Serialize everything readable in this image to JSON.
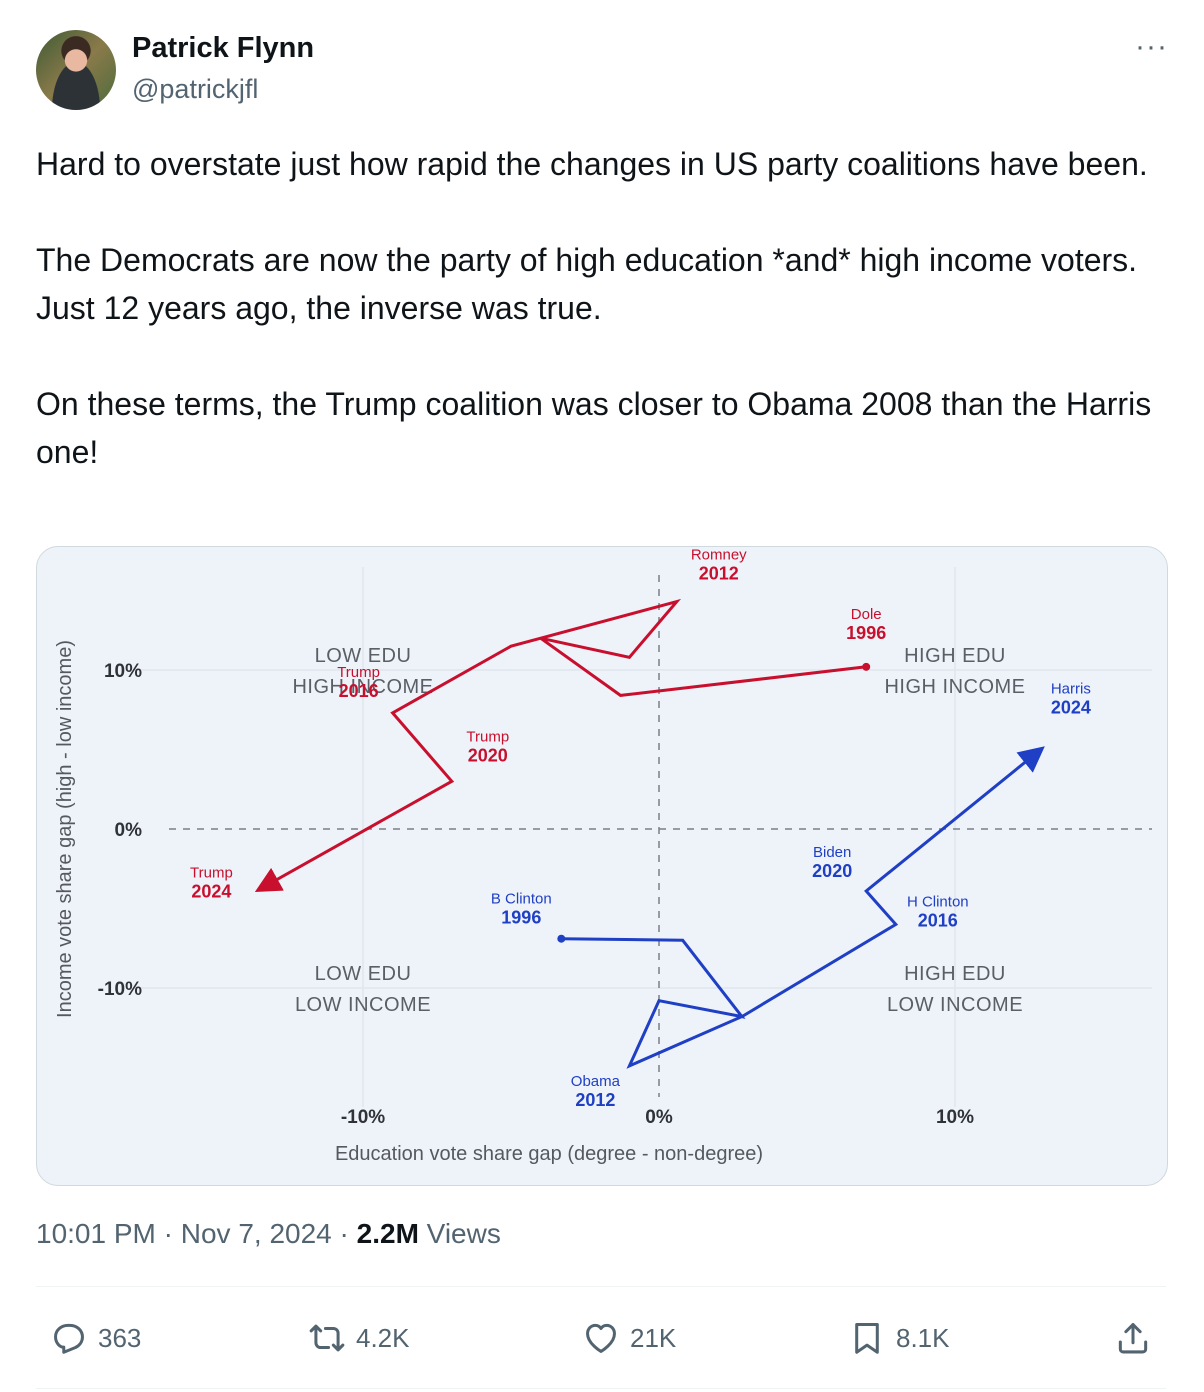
{
  "author": {
    "name": "Patrick Flynn",
    "handle": "@patrickjfl"
  },
  "more_icon": "more-icon",
  "tweet": {
    "paragraphs": [
      "Hard to overstate just how rapid the changes in US party coalitions have been.",
      "The Democrats are now the party of high education *and* high income voters. Just 12 years ago, the inverse was true.",
      "On these terms, the Trump coalition was closer to Obama 2008 than the Harris one!"
    ]
  },
  "chart_data": {
    "type": "line",
    "xlabel": "Education vote share gap (degree - non-degree)",
    "ylabel": "Income vote share gap (high - low income)",
    "xlim": [
      -16,
      17
    ],
    "ylim": [
      -16,
      16
    ],
    "x_ticks": [
      {
        "value": -10,
        "label": "-10%"
      },
      {
        "value": 0,
        "label": "0%"
      },
      {
        "value": 10,
        "label": "10%"
      }
    ],
    "y_ticks": [
      {
        "value": 10,
        "label": "10%"
      },
      {
        "value": 0,
        "label": "0%"
      },
      {
        "value": -10,
        "label": "-10%"
      }
    ],
    "quadrant_labels": [
      {
        "line1": "LOW EDU",
        "line2": "HIGH INCOME",
        "x": -10,
        "y": 10
      },
      {
        "line1": "HIGH EDU",
        "line2": "HIGH INCOME",
        "x": 10,
        "y": 10
      },
      {
        "line1": "LOW EDU",
        "line2": "LOW INCOME",
        "x": -10,
        "y": -10
      },
      {
        "line1": "HIGH EDU",
        "line2": "LOW INCOME",
        "x": 10,
        "y": -10
      }
    ],
    "series": [
      {
        "party": "Republican",
        "color": "#c8102e",
        "points": [
          {
            "x": 7,
            "y": 10.2,
            "name": "Dole",
            "year": "1996",
            "labeled": true
          },
          {
            "x": -1.3,
            "y": 8.4,
            "labeled": false
          },
          {
            "x": -4,
            "y": 12,
            "labeled": false
          },
          {
            "x": -1,
            "y": 10.8,
            "labeled": false
          },
          {
            "x": 0.6,
            "y": 14.3,
            "name": "Romney",
            "year": "2012",
            "labeled": true
          },
          {
            "x": -5,
            "y": 11.5,
            "labeled": false
          },
          {
            "x": -9,
            "y": 7.3,
            "name": "Trump",
            "year": "2016",
            "labeled": true
          },
          {
            "x": -7,
            "y": 3,
            "name": "Trump",
            "year": "2020",
            "labeled": true
          },
          {
            "x": -13.5,
            "y": -3.8,
            "name": "Trump",
            "year": "2024",
            "labeled": true
          }
        ]
      },
      {
        "party": "Democratic",
        "color": "#1f3fc4",
        "points": [
          {
            "x": -3.3,
            "y": -6.9,
            "name": "B Clinton",
            "year": "1996",
            "labeled": true
          },
          {
            "x": 0.8,
            "y": -7,
            "labeled": false
          },
          {
            "x": 2.8,
            "y": -11.8,
            "labeled": false
          },
          {
            "x": 0,
            "y": -10.8,
            "labeled": false
          },
          {
            "x": -1,
            "y": -14.9,
            "name": "Obama",
            "year": "2012",
            "labeled": true
          },
          {
            "x": 2.8,
            "y": -11.8,
            "labeled": false
          },
          {
            "x": 8,
            "y": -6,
            "name": "H Clinton",
            "year": "2016",
            "labeled": true
          },
          {
            "x": 7,
            "y": -3.9,
            "name": "Biden",
            "year": "2020",
            "labeled": true
          },
          {
            "x": 12.9,
            "y": 5,
            "name": "Harris",
            "year": "2024",
            "labeled": true
          }
        ]
      }
    ],
    "grid": true
  },
  "timestamp": {
    "time": "10:01 PM",
    "sep1": " · ",
    "date": "Nov 7, 2024",
    "sep2": " · ",
    "views_count": "2.2M",
    "views_label": " Views"
  },
  "actions": {
    "reply": {
      "icon": "reply-icon",
      "count": "363"
    },
    "retweet": {
      "icon": "retweet-icon",
      "count": "4.2K"
    },
    "like": {
      "icon": "like-icon",
      "count": "21K"
    },
    "bookmark": {
      "icon": "bookmark-icon",
      "count": "8.1K"
    },
    "share": {
      "icon": "share-icon"
    }
  }
}
